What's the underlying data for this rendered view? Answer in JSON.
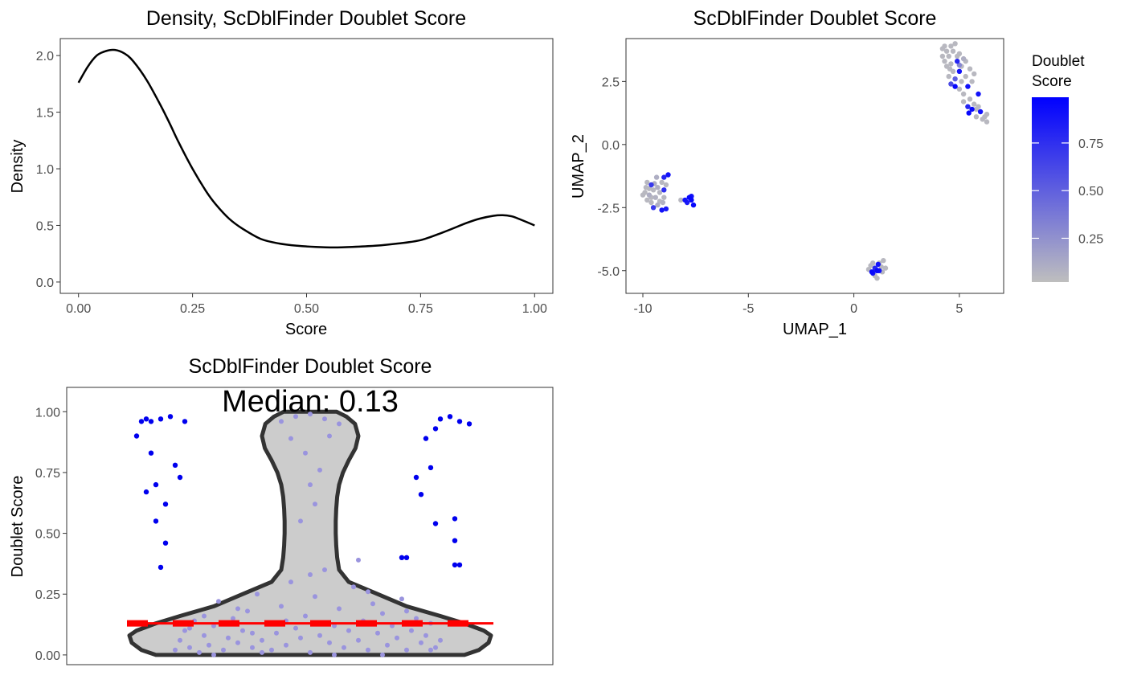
{
  "chart_data": [
    {
      "type": "line",
      "title": "Density, ScDblFinder Doublet Score",
      "xlabel": "Score",
      "ylabel": "Density",
      "xlim": [
        -0.04,
        1.04
      ],
      "ylim": [
        -0.1,
        2.15
      ],
      "xticks": [
        0,
        0.25,
        0.5,
        0.75,
        1
      ],
      "xtick_labels": [
        "0.00",
        "0.25",
        "0.50",
        "0.75",
        "1.00"
      ],
      "yticks": [
        0,
        0.5,
        1,
        1.5,
        2
      ],
      "ytick_labels": [
        "0.0",
        "0.5",
        "1.0",
        "1.5",
        "2.0"
      ],
      "grid": false,
      "series": [
        {
          "x": [
            0.0,
            0.02,
            0.04,
            0.06,
            0.08,
            0.1,
            0.12,
            0.15,
            0.18,
            0.2,
            0.22,
            0.25,
            0.28,
            0.3,
            0.33,
            0.36,
            0.4,
            0.44,
            0.48,
            0.52,
            0.56,
            0.6,
            0.65,
            0.7,
            0.75,
            0.8,
            0.85,
            0.88,
            0.91,
            0.93,
            0.95,
            0.97,
            1.0
          ],
          "y": [
            1.76,
            1.9,
            2.0,
            2.04,
            2.05,
            2.02,
            1.95,
            1.78,
            1.56,
            1.4,
            1.23,
            1.0,
            0.8,
            0.69,
            0.56,
            0.47,
            0.38,
            0.34,
            0.32,
            0.31,
            0.305,
            0.31,
            0.32,
            0.34,
            0.37,
            0.44,
            0.52,
            0.56,
            0.585,
            0.59,
            0.58,
            0.55,
            0.5
          ]
        }
      ]
    },
    {
      "type": "scatter",
      "title": "ScDblFinder Doublet Score",
      "xlabel": "UMAP_1",
      "ylabel": "UMAP_2",
      "xlim": [
        -10.8,
        7.1
      ],
      "ylim": [
        -5.9,
        4.2
      ],
      "xticks": [
        -10,
        -5,
        0,
        5
      ],
      "xtick_labels": [
        "-10",
        "-5",
        "0",
        "5"
      ],
      "yticks": [
        -5,
        -2.5,
        0,
        2.5
      ],
      "ytick_labels": [
        "-5.0",
        "-2.5",
        "0.0",
        "2.5"
      ],
      "grid": false,
      "legend": {
        "title_lines": [
          "Doublet",
          "Score"
        ],
        "placement": "right",
        "scale_low": 0.02,
        "scale_high": 0.99,
        "ticks": [
          0.25,
          0.5,
          0.75
        ],
        "tick_labels": [
          "0.25",
          "0.50",
          "0.75"
        ],
        "low_color": "#bebebe",
        "high_color": "#0000ff"
      },
      "points": [
        [
          -9.8,
          -1.5,
          0.05
        ],
        [
          -9.6,
          -1.6,
          0.7
        ],
        [
          -9.9,
          -1.9,
          0.05
        ],
        [
          -9.7,
          -2.0,
          0.1
        ],
        [
          -9.5,
          -1.8,
          0.05
        ],
        [
          -9.4,
          -2.1,
          0.08
        ],
        [
          -9.6,
          -2.3,
          0.05
        ],
        [
          -9.3,
          -1.7,
          0.1
        ],
        [
          -9.1,
          -1.5,
          0.05
        ],
        [
          -9.2,
          -1.9,
          0.06
        ],
        [
          -9.0,
          -1.8,
          0.75
        ],
        [
          -9.0,
          -2.1,
          0.05
        ],
        [
          -9.3,
          -2.4,
          0.1
        ],
        [
          -9.5,
          -2.5,
          0.7
        ],
        [
          -9.1,
          -2.6,
          0.9
        ],
        [
          -8.9,
          -2.55,
          0.85
        ],
        [
          -9.0,
          -1.3,
          0.8
        ],
        [
          -8.8,
          -1.2,
          0.9
        ],
        [
          -9.8,
          -2.2,
          0.05
        ],
        [
          -9.7,
          -1.75,
          0.05
        ],
        [
          -9.45,
          -1.55,
          0.1
        ],
        [
          -9.2,
          -2.25,
          0.05
        ],
        [
          -8.9,
          -1.6,
          0.05
        ],
        [
          -9.05,
          -2.3,
          0.08
        ],
        [
          -9.6,
          -2.1,
          0.05
        ],
        [
          -10.0,
          -2.0,
          0.05
        ],
        [
          -9.85,
          -1.7,
          0.05
        ],
        [
          -9.35,
          -1.3,
          0.1
        ],
        [
          -8.2,
          -2.2,
          0.05
        ],
        [
          -8.0,
          -2.2,
          0.9
        ],
        [
          -7.8,
          -2.1,
          0.95
        ],
        [
          -7.7,
          -2.2,
          0.95
        ],
        [
          -7.6,
          -2.4,
          0.95
        ],
        [
          -7.9,
          -2.3,
          0.85
        ],
        [
          -7.7,
          -2.05,
          0.9
        ],
        [
          0.8,
          -4.8,
          0.05
        ],
        [
          1.0,
          -4.9,
          0.8
        ],
        [
          1.1,
          -5.0,
          0.95
        ],
        [
          0.9,
          -5.1,
          0.9
        ],
        [
          1.2,
          -4.7,
          0.05
        ],
        [
          1.3,
          -4.85,
          0.05
        ],
        [
          1.4,
          -4.6,
          0.05
        ],
        [
          1.5,
          -4.9,
          0.05
        ],
        [
          0.7,
          -4.95,
          0.05
        ],
        [
          1.0,
          -5.2,
          0.05
        ],
        [
          1.1,
          -5.3,
          0.05
        ],
        [
          1.2,
          -5.0,
          0.9
        ],
        [
          0.9,
          -4.7,
          0.05
        ],
        [
          1.05,
          -4.95,
          0.7
        ],
        [
          1.35,
          -5.05,
          0.05
        ],
        [
          0.85,
          -5.05,
          0.95
        ],
        [
          1.15,
          -4.75,
          0.9
        ],
        [
          4.2,
          3.8,
          0.05
        ],
        [
          4.4,
          3.7,
          0.05
        ],
        [
          4.6,
          3.9,
          0.05
        ],
        [
          4.8,
          4.0,
          0.05
        ],
        [
          4.5,
          3.5,
          0.05
        ],
        [
          4.3,
          3.3,
          0.05
        ],
        [
          4.6,
          3.2,
          0.05
        ],
        [
          4.9,
          3.3,
          0.8
        ],
        [
          5.0,
          3.6,
          0.05
        ],
        [
          5.2,
          3.4,
          0.1
        ],
        [
          5.1,
          3.1,
          0.05
        ],
        [
          4.7,
          2.9,
          0.05
        ],
        [
          4.5,
          2.7,
          0.05
        ],
        [
          4.8,
          2.6,
          0.5
        ],
        [
          5.0,
          2.9,
          0.9
        ],
        [
          5.3,
          2.7,
          0.05
        ],
        [
          5.5,
          3.0,
          0.05
        ],
        [
          5.6,
          2.5,
          0.05
        ],
        [
          5.4,
          2.3,
          0.9
        ],
        [
          5.2,
          2.0,
          0.05
        ],
        [
          5.0,
          2.2,
          0.05
        ],
        [
          4.8,
          2.3,
          0.95
        ],
        [
          4.6,
          2.4,
          0.6
        ],
        [
          5.5,
          1.8,
          0.05
        ],
        [
          5.7,
          1.6,
          0.05
        ],
        [
          5.9,
          1.5,
          0.05
        ],
        [
          6.0,
          1.3,
          0.9
        ],
        [
          5.8,
          1.1,
          0.05
        ],
        [
          6.1,
          1.0,
          0.05
        ],
        [
          6.3,
          0.9,
          0.05
        ],
        [
          6.2,
          1.1,
          0.05
        ],
        [
          5.6,
          1.4,
          0.95
        ],
        [
          5.4,
          1.5,
          0.8
        ],
        [
          5.9,
          2.0,
          0.9
        ],
        [
          5.3,
          3.3,
          0.05
        ],
        [
          4.9,
          3.5,
          0.05
        ],
        [
          4.4,
          3.1,
          0.05
        ],
        [
          5.1,
          2.5,
          0.05
        ],
        [
          5.7,
          2.8,
          0.05
        ],
        [
          4.3,
          3.9,
          0.05
        ],
        [
          5.2,
          1.7,
          0.05
        ],
        [
          4.7,
          3.7,
          0.05
        ],
        [
          6.3,
          1.2,
          0.05
        ],
        [
          5.8,
          1.4,
          0.05
        ],
        [
          4.2,
          3.5,
          0.05
        ],
        [
          5.0,
          3.15,
          0.3
        ],
        [
          5.45,
          1.25,
          0.95
        ],
        [
          4.55,
          3.0,
          0.05
        ]
      ]
    },
    {
      "type": "violin",
      "title": "ScDblFinder Doublet Score",
      "xlabel": "",
      "ylabel": "Doublet Score",
      "ylim": [
        -0.04,
        1.1
      ],
      "yticks": [
        0,
        0.25,
        0.5,
        0.75,
        1
      ],
      "ytick_labels": [
        "0.00",
        "0.25",
        "0.50",
        "0.75",
        "1.00"
      ],
      "grid": false,
      "annotation": "Median: 0.13",
      "median": 0.13,
      "fill_color": "#cccccc",
      "outline_color": "#333333",
      "median_line_color": "#ff0000",
      "outlier_color": "#0000ee",
      "inner_point_color": "#9a94de",
      "profile": [
        [
          0.0,
          0.32
        ],
        [
          0.02,
          0.35
        ],
        [
          0.05,
          0.37
        ],
        [
          0.08,
          0.375
        ],
        [
          0.1,
          0.36
        ],
        [
          0.13,
          0.32
        ],
        [
          0.16,
          0.27
        ],
        [
          0.2,
          0.2
        ],
        [
          0.25,
          0.14
        ],
        [
          0.3,
          0.08
        ],
        [
          0.35,
          0.06
        ],
        [
          0.4,
          0.056
        ],
        [
          0.45,
          0.054
        ],
        [
          0.5,
          0.053
        ],
        [
          0.55,
          0.053
        ],
        [
          0.6,
          0.054
        ],
        [
          0.65,
          0.056
        ],
        [
          0.7,
          0.06
        ],
        [
          0.75,
          0.068
        ],
        [
          0.8,
          0.08
        ],
        [
          0.85,
          0.094
        ],
        [
          0.9,
          0.1
        ],
        [
          0.95,
          0.093
        ],
        [
          0.98,
          0.075
        ],
        [
          1.0,
          0.055
        ]
      ],
      "inner_points": [
        [
          -0.28,
          0.02
        ],
        [
          -0.27,
          0.06
        ],
        [
          -0.26,
          0.1
        ],
        [
          -0.25,
          0.03
        ],
        [
          -0.24,
          0.14
        ],
        [
          -0.23,
          0.01
        ],
        [
          -0.22,
          0.08
        ],
        [
          -0.21,
          0.04
        ],
        [
          -0.2,
          0.12
        ],
        [
          -0.19,
          0.22
        ],
        [
          -0.18,
          0.02
        ],
        [
          -0.17,
          0.07
        ],
        [
          -0.16,
          0.15
        ],
        [
          -0.15,
          0.05
        ],
        [
          -0.14,
          0.1
        ],
        [
          -0.13,
          0.18
        ],
        [
          -0.12,
          0.03
        ],
        [
          -0.11,
          0.25
        ],
        [
          -0.1,
          0.06
        ],
        [
          -0.09,
          0.13
        ],
        [
          -0.08,
          0.02
        ],
        [
          -0.07,
          0.09
        ],
        [
          -0.06,
          0.2
        ],
        [
          -0.05,
          0.04
        ],
        [
          -0.04,
          0.3
        ],
        [
          -0.03,
          0.11
        ],
        [
          -0.02,
          0.07
        ],
        [
          -0.01,
          0.16
        ],
        [
          0.0,
          0.01
        ],
        [
          0.01,
          0.24
        ],
        [
          0.02,
          0.08
        ],
        [
          0.03,
          0.35
        ],
        [
          0.04,
          0.05
        ],
        [
          0.05,
          0.12
        ],
        [
          0.06,
          0.19
        ],
        [
          0.07,
          0.03
        ],
        [
          0.08,
          0.1
        ],
        [
          0.09,
          0.28
        ],
        [
          0.1,
          0.06
        ],
        [
          0.11,
          0.14
        ],
        [
          0.12,
          0.02
        ],
        [
          0.13,
          0.21
        ],
        [
          0.14,
          0.09
        ],
        [
          0.15,
          0.17
        ],
        [
          0.16,
          0.04
        ],
        [
          0.17,
          0.12
        ],
        [
          0.18,
          0.07
        ],
        [
          0.19,
          0.23
        ],
        [
          0.2,
          0.02
        ],
        [
          0.21,
          0.1
        ],
        [
          0.22,
          0.15
        ],
        [
          0.23,
          0.05
        ],
        [
          0.24,
          0.08
        ],
        [
          0.25,
          0.13
        ],
        [
          0.26,
          0.03
        ],
        [
          0.27,
          0.06
        ],
        [
          -0.25,
          0.11
        ],
        [
          -0.2,
          0.0
        ],
        [
          -0.15,
          0.19
        ],
        [
          -0.1,
          0.01
        ],
        [
          -0.05,
          0.14
        ],
        [
          0.0,
          0.33
        ],
        [
          0.05,
          0.0
        ],
        [
          0.1,
          0.39
        ],
        [
          0.15,
          0.0
        ],
        [
          0.2,
          0.18
        ],
        [
          0.25,
          0.02
        ],
        [
          -0.22,
          0.16
        ],
        [
          -0.12,
          0.09
        ],
        [
          0.12,
          0.26
        ],
        [
          -0.03,
          0.98
        ],
        [
          0.0,
          0.99
        ],
        [
          0.03,
          0.97
        ],
        [
          -0.04,
          0.89
        ],
        [
          0.04,
          0.9
        ],
        [
          -0.01,
          0.83
        ],
        [
          0.02,
          0.76
        ],
        [
          0.01,
          0.62
        ],
        [
          -0.02,
          0.55
        ],
        [
          0.0,
          0.7
        ],
        [
          -0.06,
          0.96
        ],
        [
          0.06,
          0.95
        ]
      ],
      "outliers": [
        [
          -0.35,
          0.96
        ],
        [
          -0.34,
          0.97
        ],
        [
          -0.33,
          0.96
        ],
        [
          -0.31,
          0.97
        ],
        [
          -0.29,
          0.98
        ],
        [
          -0.36,
          0.9
        ],
        [
          -0.33,
          0.83
        ],
        [
          -0.34,
          0.67
        ],
        [
          -0.32,
          0.7
        ],
        [
          -0.3,
          0.62
        ],
        [
          -0.32,
          0.55
        ],
        [
          -0.3,
          0.46
        ],
        [
          -0.31,
          0.36
        ],
        [
          -0.28,
          0.78
        ],
        [
          -0.27,
          0.73
        ],
        [
          -0.26,
          0.96
        ],
        [
          0.27,
          0.97
        ],
        [
          0.29,
          0.98
        ],
        [
          0.31,
          0.96
        ],
        [
          0.33,
          0.95
        ],
        [
          0.26,
          0.93
        ],
        [
          0.24,
          0.89
        ],
        [
          0.25,
          0.77
        ],
        [
          0.22,
          0.73
        ],
        [
          0.23,
          0.66
        ],
        [
          0.26,
          0.54
        ],
        [
          0.3,
          0.56
        ],
        [
          0.3,
          0.47
        ],
        [
          0.3,
          0.37
        ],
        [
          0.31,
          0.37
        ],
        [
          0.2,
          0.4
        ],
        [
          0.19,
          0.4
        ]
      ]
    }
  ]
}
